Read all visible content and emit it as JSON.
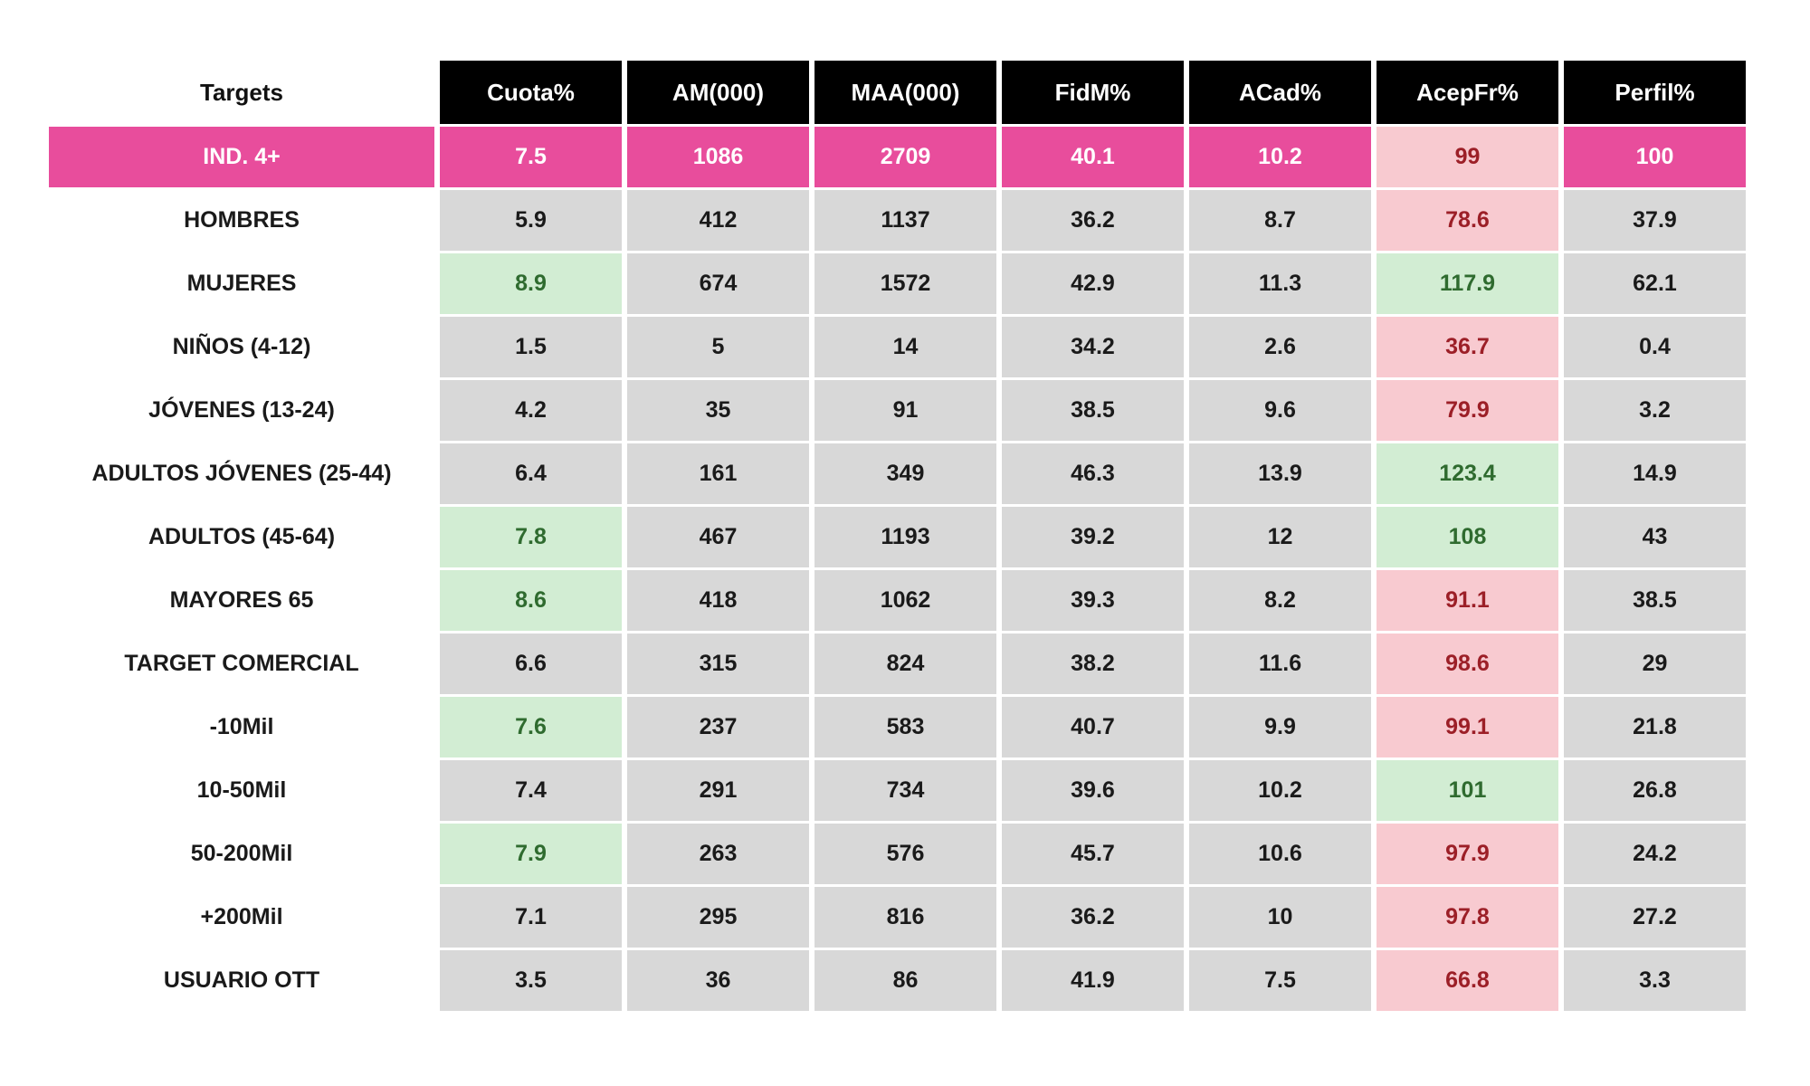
{
  "colors": {
    "header_bg": "#000000",
    "header_text": "#FFFFFF",
    "total_row_bg": "#E84D9C",
    "total_row_text": "#FFFFFF",
    "cell_bg": "#D8D8D8",
    "cell_text": "#1A1A1A",
    "good_bg": "#D2EDD3",
    "good_text": "#2F6B2F",
    "bad_bg": "#F8CAD0",
    "bad_text": "#9C1F27",
    "page_bg": "#FFFFFF"
  },
  "chart_data": {
    "type": "table",
    "title": "",
    "columns": [
      "Targets",
      "Cuota%",
      "AM(000)",
      "MAA(000)",
      "FidM%",
      "ACad%",
      "AcepFr%",
      "Perfil%"
    ],
    "conditional_formatting": {
      "good": "green cell: value above reference (Cuota% above total 7.5, AcepFr% >= 100)",
      "bad": "red cell: AcepFr% below 100",
      "total": "pink highlighted total row IND. 4+"
    },
    "rows": [
      {
        "label": "IND. 4+",
        "row_type": "total",
        "values": [
          7.5,
          1086,
          2709,
          40.1,
          10.2,
          99,
          100
        ],
        "styles": [
          "total",
          "total",
          "total",
          "total",
          "total",
          "bad",
          "total"
        ]
      },
      {
        "label": "HOMBRES",
        "row_type": "data",
        "values": [
          5.9,
          412,
          1137,
          36.2,
          8.7,
          78.6,
          37.9
        ],
        "styles": [
          "normal",
          "normal",
          "normal",
          "normal",
          "normal",
          "bad",
          "normal"
        ]
      },
      {
        "label": "MUJERES",
        "row_type": "data",
        "values": [
          8.9,
          674,
          1572,
          42.9,
          11.3,
          117.9,
          62.1
        ],
        "styles": [
          "good",
          "normal",
          "normal",
          "normal",
          "normal",
          "good",
          "normal"
        ]
      },
      {
        "label": "NIÑOS (4-12)",
        "row_type": "data",
        "values": [
          1.5,
          5,
          14,
          34.2,
          2.6,
          36.7,
          0.4
        ],
        "styles": [
          "normal",
          "normal",
          "normal",
          "normal",
          "normal",
          "bad",
          "normal"
        ]
      },
      {
        "label": "JÓVENES (13-24)",
        "row_type": "data",
        "values": [
          4.2,
          35,
          91,
          38.5,
          9.6,
          79.9,
          3.2
        ],
        "styles": [
          "normal",
          "normal",
          "normal",
          "normal",
          "normal",
          "bad",
          "normal"
        ]
      },
      {
        "label": "ADULTOS JÓVENES (25-44)",
        "row_type": "data",
        "values": [
          6.4,
          161,
          349,
          46.3,
          13.9,
          123.4,
          14.9
        ],
        "styles": [
          "normal",
          "normal",
          "normal",
          "normal",
          "normal",
          "good",
          "normal"
        ]
      },
      {
        "label": "ADULTOS (45-64)",
        "row_type": "data",
        "values": [
          7.8,
          467,
          1193,
          39.2,
          12,
          108,
          43
        ],
        "styles": [
          "good",
          "normal",
          "normal",
          "normal",
          "normal",
          "good",
          "normal"
        ]
      },
      {
        "label": "MAYORES 65",
        "row_type": "data",
        "values": [
          8.6,
          418,
          1062,
          39.3,
          8.2,
          91.1,
          38.5
        ],
        "styles": [
          "good",
          "normal",
          "normal",
          "normal",
          "normal",
          "bad",
          "normal"
        ]
      },
      {
        "label": "TARGET COMERCIAL",
        "row_type": "data",
        "values": [
          6.6,
          315,
          824,
          38.2,
          11.6,
          98.6,
          29
        ],
        "styles": [
          "normal",
          "normal",
          "normal",
          "normal",
          "normal",
          "bad",
          "normal"
        ]
      },
      {
        "label": "-10Mil",
        "row_type": "data",
        "values": [
          7.6,
          237,
          583,
          40.7,
          9.9,
          99.1,
          21.8
        ],
        "styles": [
          "good",
          "normal",
          "normal",
          "normal",
          "normal",
          "bad",
          "normal"
        ]
      },
      {
        "label": "10-50Mil",
        "row_type": "data",
        "values": [
          7.4,
          291,
          734,
          39.6,
          10.2,
          101,
          26.8
        ],
        "styles": [
          "normal",
          "normal",
          "normal",
          "normal",
          "normal",
          "good",
          "normal"
        ]
      },
      {
        "label": "50-200Mil",
        "row_type": "data",
        "values": [
          7.9,
          263,
          576,
          45.7,
          10.6,
          97.9,
          24.2
        ],
        "styles": [
          "good",
          "normal",
          "normal",
          "normal",
          "normal",
          "bad",
          "normal"
        ]
      },
      {
        "label": "+200Mil",
        "row_type": "data",
        "values": [
          7.1,
          295,
          816,
          36.2,
          10,
          97.8,
          27.2
        ],
        "styles": [
          "normal",
          "normal",
          "normal",
          "normal",
          "normal",
          "bad",
          "normal"
        ]
      },
      {
        "label": "USUARIO OTT",
        "row_type": "data",
        "values": [
          3.5,
          36,
          86,
          41.9,
          7.5,
          66.8,
          3.3
        ],
        "styles": [
          "normal",
          "normal",
          "normal",
          "normal",
          "normal",
          "bad",
          "normal"
        ]
      }
    ]
  }
}
